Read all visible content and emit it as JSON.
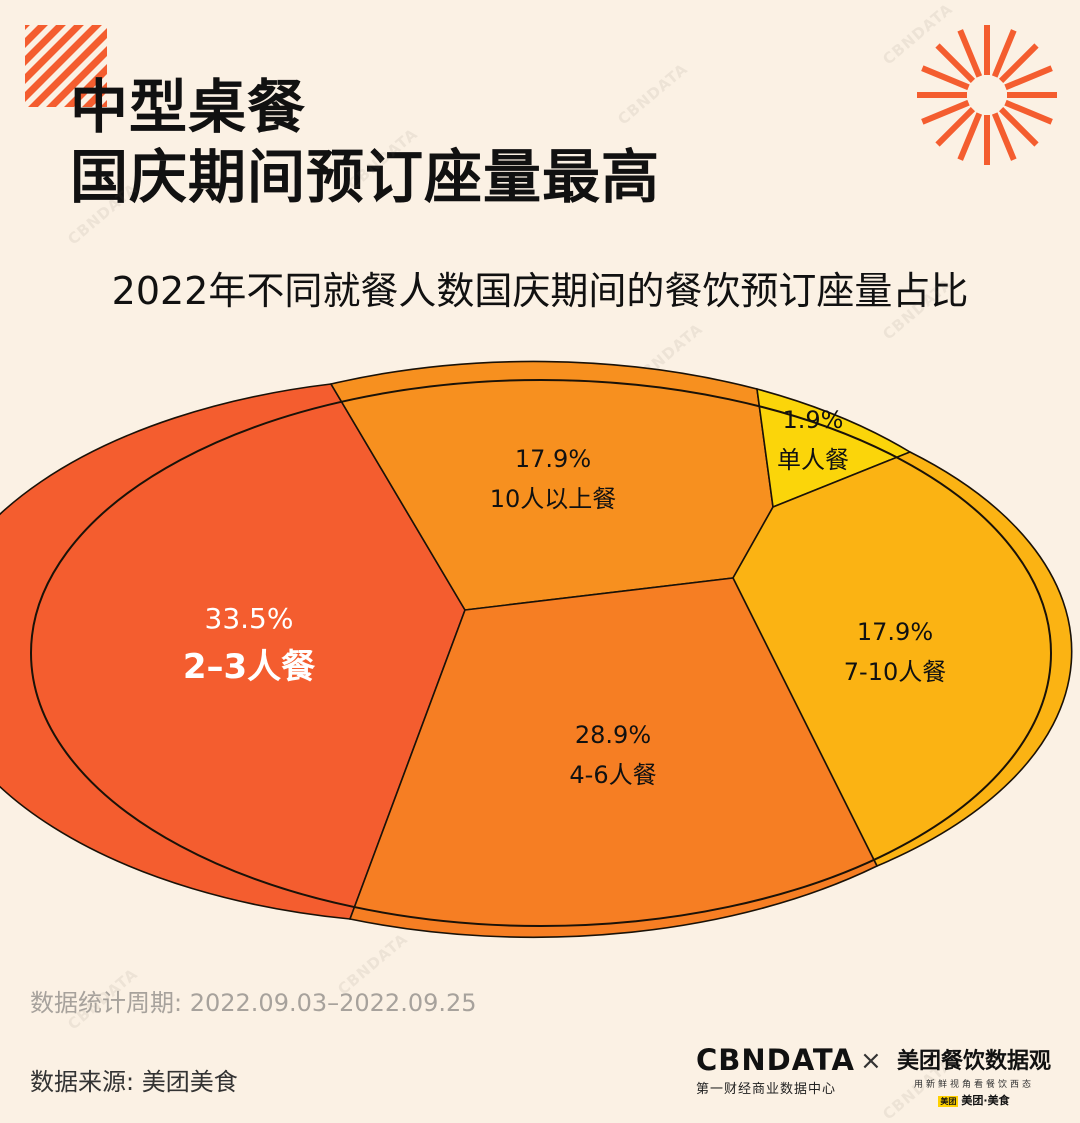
{
  "title": {
    "line1": "中型桌餐",
    "line2": "国庆期间预订座量最高"
  },
  "subtitle": "2022年不同就餐人数国庆期间的餐饮预订座量占比",
  "watermark": "CBNDATA",
  "chart_data": {
    "type": "pie",
    "title": "2022年不同就餐人数国庆期间的餐饮预订座量占比",
    "slices": [
      {
        "label": "2–3人餐",
        "value": 33.5,
        "value_label": "33.5%",
        "color": "#f45d2f",
        "text_color": "#ffffff",
        "emphasis": true
      },
      {
        "label": "10人以上餐",
        "value": 17.9,
        "value_label": "17.9%",
        "color": "#f7901f",
        "text_color": "#111111"
      },
      {
        "label": "单人餐",
        "value": 1.9,
        "value_label": "1.9%",
        "color": "#fbd50a",
        "text_color": "#111111"
      },
      {
        "label": "7-10人餐",
        "value": 17.9,
        "value_label": "17.9%",
        "color": "#fbb313",
        "text_color": "#111111"
      },
      {
        "label": "4-6人餐",
        "value": 28.9,
        "value_label": "28.9%",
        "color": "#f67e23",
        "text_color": "#111111"
      }
    ]
  },
  "footer": {
    "period": "数据统计周期: 2022.09.03–2022.09.25",
    "source": "数据来源: 美团美食",
    "cbn_logo": "CBNDATA",
    "cbn_sub": "第一财经商业数据中心",
    "times": "×",
    "mt_logo": "美团餐饮数据观",
    "mt_sub": "用新鲜视角看餐饮西态",
    "mt_mark_box": "美团",
    "mt_mark": "美团·美食"
  },
  "colors": {
    "background": "#fbf1e4",
    "accent": "#f45d2f"
  }
}
